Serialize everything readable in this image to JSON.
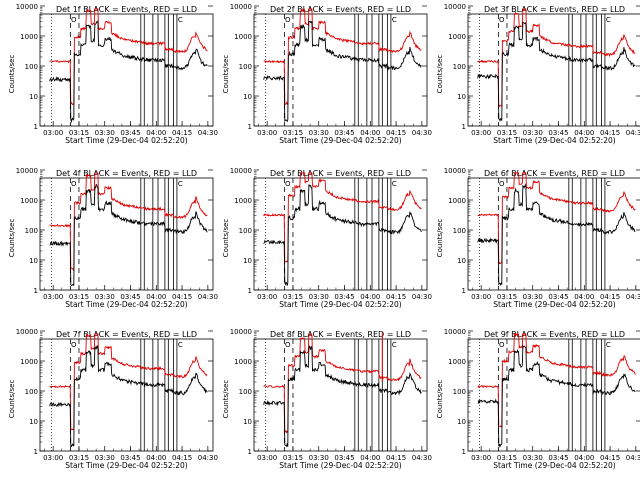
{
  "figure": {
    "background": "#ffffff",
    "colors": {
      "events": "#000000",
      "lld": "#e00000",
      "axis": "#000000"
    }
  },
  "chart_data": [
    {
      "panel": "det1",
      "type": "line",
      "title": "Det 1f BLACK = Events, RED = LLD",
      "xlabel": "Start Time (29-Dec-04 02:52:20)",
      "ylabel": "Counts/sec",
      "yscale": "log",
      "ylim": [
        1,
        10000
      ],
      "xticks": [
        "03:00",
        "03:15",
        "03:30",
        "03:45",
        "04:00",
        "04:15",
        "04:30"
      ],
      "yticks": [
        "1",
        "10",
        "100",
        "1000",
        "10000"
      ],
      "markers": {
        "dotted": [
          "02:59"
        ],
        "dashed": [
          "03:10",
          "03:15"
        ],
        "solid_pairs": [
          [
            "03:51",
            "03:53"
          ],
          [
            "03:58",
            "04:01"
          ],
          [
            "04:05",
            "04:07"
          ],
          [
            "04:10",
            "04:12"
          ]
        ],
        "top_labels": [
          "O",
          "C"
        ]
      },
      "series": [
        {
          "name": "Events",
          "color": "#000000"
        },
        {
          "name": "LLD",
          "color": "#e00000"
        }
      ]
    },
    {
      "panel": "det2",
      "type": "line",
      "title": "Det 2f BLACK = Events, RED = LLD",
      "xlabel": "Start Time (29-Dec-04 02:52:20)",
      "ylabel": "Counts/sec",
      "yscale": "log",
      "ylim": [
        1,
        10000
      ],
      "xticks": [
        "03:00",
        "03:15",
        "03:30",
        "03:45",
        "04:00",
        "04:15",
        "04:30"
      ],
      "yticks": [
        "1",
        "10",
        "100",
        "1000",
        "10000"
      ],
      "markers": {
        "dotted": [
          "02:59"
        ],
        "dashed": [
          "03:10",
          "03:15"
        ],
        "solid_pairs": [
          [
            "03:51",
            "03:53"
          ],
          [
            "03:58",
            "04:01"
          ],
          [
            "04:05",
            "04:07"
          ],
          [
            "04:10",
            "04:12"
          ]
        ],
        "top_labels": [
          "O",
          "C"
        ]
      },
      "series": [
        {
          "name": "Events",
          "color": "#000000"
        },
        {
          "name": "LLD",
          "color": "#e00000"
        }
      ]
    },
    {
      "panel": "det3",
      "type": "line",
      "title": "Det 3f BLACK = Events, RED = LLD",
      "xlabel": "Start Time (29-Dec-04 02:52:20)",
      "ylabel": "Counts/sec",
      "yscale": "log",
      "ylim": [
        1,
        10000
      ],
      "xticks": [
        "03:00",
        "03:15",
        "03:30",
        "03:45",
        "04:00",
        "04:15",
        "04:30"
      ],
      "yticks": [
        "1",
        "10",
        "100",
        "1000",
        "10000"
      ],
      "markers": {
        "dotted": [
          "02:59"
        ],
        "dashed": [
          "03:10",
          "03:15"
        ],
        "solid_pairs": [
          [
            "03:51",
            "03:53"
          ],
          [
            "03:58",
            "04:01"
          ],
          [
            "04:05",
            "04:07"
          ],
          [
            "04:10",
            "04:12"
          ]
        ],
        "top_labels": [
          "O",
          "C"
        ]
      },
      "series": [
        {
          "name": "Events",
          "color": "#000000"
        },
        {
          "name": "LLD",
          "color": "#e00000"
        }
      ]
    },
    {
      "panel": "det4",
      "type": "line",
      "title": "Det 4f BLACK = Events, RED = LLD",
      "xlabel": "Start Time (29-Dec-04 02:52:20)",
      "ylabel": "Counts/sec",
      "yscale": "log",
      "ylim": [
        1,
        10000
      ],
      "xticks": [
        "03:00",
        "03:15",
        "03:30",
        "03:45",
        "04:00",
        "04:15",
        "04:30"
      ],
      "yticks": [
        "1",
        "10",
        "100",
        "1000",
        "10000"
      ],
      "markers": {
        "dotted": [
          "02:59"
        ],
        "dashed": [
          "03:10",
          "03:15"
        ],
        "solid_pairs": [
          [
            "03:51",
            "03:53"
          ],
          [
            "03:58",
            "04:01"
          ],
          [
            "04:05",
            "04:07"
          ],
          [
            "04:10",
            "04:12"
          ]
        ],
        "top_labels": [
          "O",
          "C"
        ]
      },
      "series": [
        {
          "name": "Events",
          "color": "#000000"
        },
        {
          "name": "LLD",
          "color": "#e00000"
        }
      ]
    },
    {
      "panel": "det5",
      "type": "line",
      "title": "Det 5f BLACK = Events, RED = LLD",
      "xlabel": "Start Time (29-Dec-04 02:52:20)",
      "ylabel": "Counts/sec",
      "yscale": "log",
      "ylim": [
        1,
        10000
      ],
      "xticks": [
        "03:00",
        "03:15",
        "03:30",
        "03:45",
        "04:00",
        "04:15",
        "04:30"
      ],
      "yticks": [
        "1",
        "10",
        "100",
        "1000",
        "10000"
      ],
      "markers": {
        "dotted": [
          "02:59"
        ],
        "dashed": [
          "03:10",
          "03:15"
        ],
        "solid_pairs": [
          [
            "03:51",
            "03:53"
          ],
          [
            "03:58",
            "04:01"
          ],
          [
            "04:05",
            "04:07"
          ],
          [
            "04:10",
            "04:12"
          ]
        ],
        "top_labels": [
          "O",
          "C"
        ]
      },
      "series": [
        {
          "name": "Events",
          "color": "#000000"
        },
        {
          "name": "LLD",
          "color": "#e00000"
        }
      ]
    },
    {
      "panel": "det6",
      "type": "line",
      "title": "Det 6f BLACK = Events, RED = LLD",
      "xlabel": "Start Time (29-Dec-04 02:52:20)",
      "ylabel": "Counts/sec",
      "yscale": "log",
      "ylim": [
        1,
        10000
      ],
      "xticks": [
        "03:00",
        "03:15",
        "03:30",
        "03:45",
        "04:00",
        "04:15",
        "04:30"
      ],
      "yticks": [
        "1",
        "10",
        "100",
        "1000",
        "10000"
      ],
      "markers": {
        "dotted": [
          "02:59"
        ],
        "dashed": [
          "03:10",
          "03:15"
        ],
        "solid_pairs": [
          [
            "03:51",
            "03:53"
          ],
          [
            "03:58",
            "04:01"
          ],
          [
            "04:05",
            "04:07"
          ],
          [
            "04:10",
            "04:12"
          ]
        ],
        "top_labels": [
          "O",
          "C"
        ]
      },
      "series": [
        {
          "name": "Events",
          "color": "#000000"
        },
        {
          "name": "LLD",
          "color": "#e00000"
        }
      ]
    },
    {
      "panel": "det7",
      "type": "line",
      "title": "Det 7f BLACK = Events, RED = LLD",
      "xlabel": "Start Time (29-Dec-04 02:52:20)",
      "ylabel": "Counts/sec",
      "yscale": "log",
      "ylim": [
        1,
        10000
      ],
      "xticks": [
        "03:00",
        "03:15",
        "03:30",
        "03:45",
        "04:00",
        "04:15",
        "04:30"
      ],
      "yticks": [
        "1",
        "10",
        "100",
        "1000",
        "10000"
      ],
      "markers": {
        "dotted": [
          "02:59"
        ],
        "dashed": [
          "03:10",
          "03:15"
        ],
        "solid_pairs": [
          [
            "03:51",
            "03:53"
          ],
          [
            "03:58",
            "04:01"
          ],
          [
            "04:05",
            "04:07"
          ],
          [
            "04:10",
            "04:12"
          ]
        ],
        "top_labels": [
          "O",
          "C"
        ]
      },
      "series": [
        {
          "name": "Events",
          "color": "#000000"
        },
        {
          "name": "LLD",
          "color": "#e00000"
        }
      ]
    },
    {
      "panel": "det8",
      "type": "line",
      "title": "Det 8f BLACK = Events, RED = LLD",
      "xlabel": "Start Time (29-Dec-04 02:52:20)",
      "ylabel": "Counts/sec",
      "yscale": "log",
      "ylim": [
        1,
        10000
      ],
      "xticks": [
        "03:00",
        "03:15",
        "03:30",
        "03:45",
        "04:00",
        "04:15",
        "04:30"
      ],
      "yticks": [
        "1",
        "10",
        "100",
        "1000",
        "10000"
      ],
      "markers": {
        "dotted": [
          "02:59"
        ],
        "dashed": [
          "03:10",
          "03:15"
        ],
        "solid_pairs": [
          [
            "03:51",
            "03:53"
          ],
          [
            "03:58",
            "04:01"
          ],
          [
            "04:05",
            "04:07"
          ],
          [
            "04:10",
            "04:12"
          ]
        ],
        "top_labels": [
          "O",
          "C"
        ]
      },
      "series": [
        {
          "name": "Events",
          "color": "#000000"
        },
        {
          "name": "LLD",
          "color": "#e00000"
        }
      ]
    },
    {
      "panel": "det9",
      "type": "line",
      "title": "Det 9f BLACK = Events, RED = LLD",
      "xlabel": "Start Time (29-Dec-04 02:52:20)",
      "ylabel": "Counts/sec",
      "yscale": "log",
      "ylim": [
        1,
        10000
      ],
      "xticks": [
        "03:00",
        "03:15",
        "03:30",
        "03:45",
        "04:00",
        "04:15",
        "04:30"
      ],
      "yticks": [
        "1",
        "10",
        "100",
        "1000",
        "10000"
      ],
      "markers": {
        "dotted": [
          "02:59"
        ],
        "dashed": [
          "03:10",
          "03:15"
        ],
        "solid_pairs": [
          [
            "03:51",
            "03:53"
          ],
          [
            "03:58",
            "04:01"
          ],
          [
            "04:05",
            "04:07"
          ],
          [
            "04:10",
            "04:12"
          ]
        ],
        "top_labels": [
          "O",
          "C"
        ]
      },
      "series": [
        {
          "name": "Events",
          "color": "#000000"
        },
        {
          "name": "LLD",
          "color": "#e00000"
        }
      ]
    }
  ]
}
